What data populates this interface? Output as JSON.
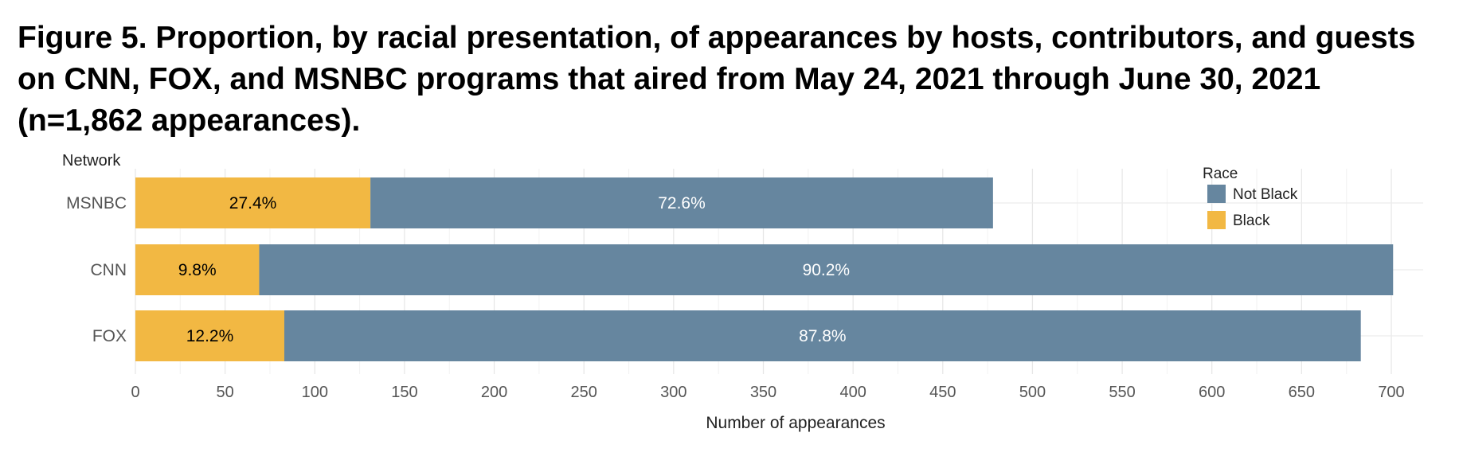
{
  "figure": {
    "title": "Figure 5. Proportion, by racial presentation, of appearances by hosts, contributors, and guests on CNN, FOX, and MSNBC programs that aired from May 24, 2021 through June 30, 2021 (n=1,862 appearances)."
  },
  "chart_data": {
    "type": "bar",
    "orientation": "horizontal",
    "stacked": true,
    "ylabel": "Network",
    "xlabel": "Number of appearances",
    "xlim": [
      0,
      700
    ],
    "xticks": [
      "0",
      "50",
      "100",
      "150",
      "200",
      "250",
      "300",
      "350",
      "400",
      "450",
      "500",
      "550",
      "600",
      "650",
      "700"
    ],
    "grid": true,
    "categories": [
      "MSNBC",
      "CNN",
      "FOX"
    ],
    "series": [
      {
        "name": "Black",
        "color": "#F2B843",
        "label_color": "#000000",
        "values": [
          131,
          69,
          83
        ],
        "labels": [
          "27.4%",
          "9.8%",
          "12.2%"
        ]
      },
      {
        "name": "Not Black",
        "color": "#66869F",
        "label_color": "#ffffff",
        "values": [
          347,
          632,
          600
        ],
        "labels": [
          "72.6%",
          "90.2%",
          "87.8%"
        ]
      }
    ],
    "legend": {
      "title": "Race",
      "position": "top-right",
      "entries": [
        {
          "name": "Not Black",
          "color": "#66869F"
        },
        {
          "name": "Black",
          "color": "#F2B843"
        }
      ]
    }
  }
}
